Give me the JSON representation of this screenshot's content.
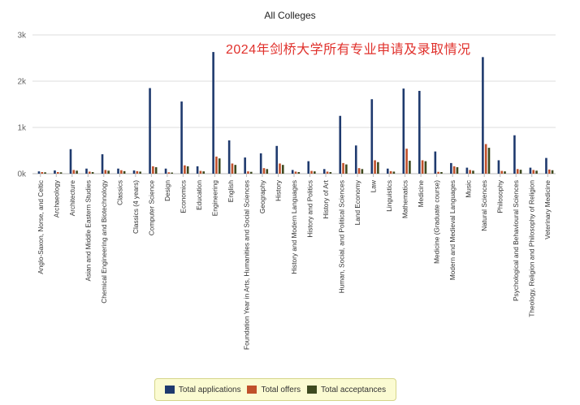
{
  "header": {
    "title": "All Colleges",
    "overlay_title": "2024年剑桥大学所有专业申请及录取情况"
  },
  "colors": {
    "applications": "#1f3a6e",
    "offers": "#c0502b",
    "acceptances": "#3e4a1f",
    "grid": "#dddddd",
    "axis_text": "#666666"
  },
  "chart_data": {
    "type": "bar",
    "title": "All Colleges",
    "xlabel": "",
    "ylabel": "",
    "ylim": [
      0,
      3000
    ],
    "yticks": [
      0,
      1000,
      2000,
      3000
    ],
    "ytick_labels": [
      "0k",
      "1k",
      "2k",
      "3k"
    ],
    "grid": true,
    "legend_position": "bottom",
    "categories": [
      "Anglo-Saxon, Norse, and Celtic",
      "Archaeology",
      "Architecture",
      "Asian and Middle Eastern Studies",
      "Chemical Engineering and Biotechnology",
      "Classics",
      "Classics (4 years)",
      "Computer Science",
      "Design",
      "Economics",
      "Education",
      "Engineering",
      "English",
      "Foundation Year in Arts, Humanities and Social Sciences",
      "Geography",
      "History",
      "History and Modern Languages",
      "History and Politics",
      "History of Art",
      "Human, Social, and Political Sciences",
      "Land Economy",
      "Law",
      "Linguistics",
      "Mathematics",
      "Medicine",
      "Medicine (Graduate course)",
      "Modern and Medieval Languages",
      "Music",
      "Natural Sciences",
      "Philosophy",
      "Psychological and Behavioural Sciences",
      "Theology, Religion and Philosophy of Religion",
      "Veterinary Medicine"
    ],
    "series": [
      {
        "name": "Total applications",
        "values": [
          50,
          70,
          530,
          110,
          420,
          110,
          70,
          1850,
          110,
          1560,
          160,
          2630,
          720,
          350,
          440,
          600,
          80,
          270,
          100,
          1250,
          610,
          1610,
          110,
          1840,
          1790,
          480,
          230,
          130,
          2520,
          290,
          830,
          130,
          340
        ]
      },
      {
        "name": "Total offers",
        "values": [
          35,
          35,
          80,
          45,
          80,
          75,
          55,
          160,
          30,
          180,
          60,
          370,
          220,
          50,
          120,
          220,
          45,
          60,
          45,
          230,
          120,
          290,
          55,
          540,
          290,
          40,
          160,
          80,
          640,
          60,
          100,
          80,
          90
        ]
      },
      {
        "name": "Total acceptances",
        "values": [
          30,
          30,
          65,
          35,
          65,
          55,
          45,
          140,
          25,
          160,
          50,
          330,
          190,
          40,
          100,
          190,
          35,
          50,
          35,
          200,
          100,
          250,
          45,
          280,
          270,
          35,
          140,
          65,
          560,
          50,
          85,
          65,
          75
        ]
      }
    ]
  },
  "legend": {
    "items": [
      "Total applications",
      "Total offers",
      "Total acceptances"
    ]
  }
}
